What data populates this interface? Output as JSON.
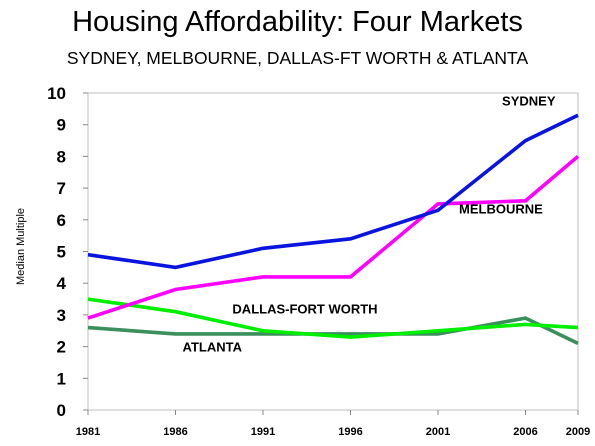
{
  "title": "Housing Affordability:  Four Markets",
  "subtitle": "SYDNEY, MELBOURNE, DALLAS-FT WORTH & ATLANTA",
  "chart_data": {
    "type": "line",
    "title": "Housing Affordability:  Four Markets",
    "subtitle": "SYDNEY, MELBOURNE, DALLAS-FT WORTH & ATLANTA",
    "xlabel": "",
    "ylabel": "Median Multiple",
    "x": [
      1981,
      1986,
      1991,
      1996,
      2001,
      2006,
      2009
    ],
    "ylim": [
      0,
      10
    ],
    "yticks": [
      "0",
      "1",
      "2",
      "3",
      "4",
      "5",
      "6",
      "7",
      "8",
      "9",
      "10"
    ],
    "xticks": [
      "1981",
      "1986",
      "1991",
      "1996",
      "2001",
      "2006",
      "2009"
    ],
    "grid": false,
    "legend": "inline labels",
    "series": [
      {
        "name": "SYDNEY",
        "color": "#0a14e0",
        "values": [
          4.9,
          4.5,
          5.1,
          5.4,
          6.3,
          8.5,
          9.3
        ]
      },
      {
        "name": "MELBOURNE",
        "color": "#ff00ff",
        "values": [
          2.9,
          3.8,
          4.2,
          4.2,
          6.5,
          6.6,
          8.0
        ]
      },
      {
        "name": "DALLAS-FORT WORTH",
        "color": "#00ee00",
        "values": [
          3.5,
          3.1,
          2.5,
          2.3,
          2.5,
          2.7,
          2.6
        ]
      },
      {
        "name": "ATLANTA",
        "color": "#3a8f5c",
        "values": [
          2.6,
          2.4,
          2.4,
          2.4,
          2.4,
          2.9,
          2.1
        ]
      }
    ]
  }
}
